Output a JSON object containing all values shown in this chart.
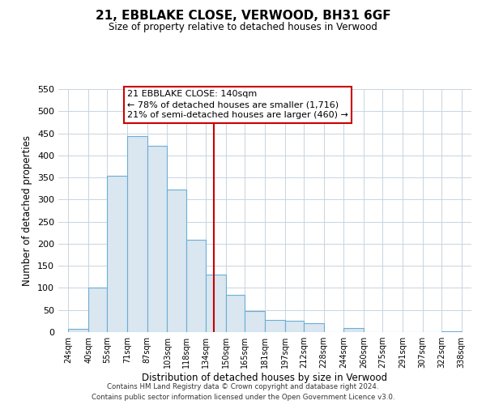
{
  "title": "21, EBBLAKE CLOSE, VERWOOD, BH31 6GF",
  "subtitle": "Size of property relative to detached houses in Verwood",
  "xlabel": "Distribution of detached houses by size in Verwood",
  "ylabel": "Number of detached properties",
  "bar_labels": [
    "24sqm",
    "40sqm",
    "55sqm",
    "71sqm",
    "87sqm",
    "103sqm",
    "118sqm",
    "134sqm",
    "150sqm",
    "165sqm",
    "181sqm",
    "197sqm",
    "212sqm",
    "228sqm",
    "244sqm",
    "260sqm",
    "275sqm",
    "291sqm",
    "307sqm",
    "322sqm",
    "338sqm"
  ],
  "bar_values": [
    7,
    101,
    354,
    444,
    422,
    323,
    209,
    130,
    85,
    47,
    28,
    25,
    20,
    0,
    9,
    0,
    0,
    0,
    0,
    2
  ],
  "bar_edges": [
    24,
    40,
    55,
    71,
    87,
    103,
    118,
    134,
    150,
    165,
    181,
    197,
    212,
    228,
    244,
    260,
    275,
    291,
    307,
    322,
    338
  ],
  "bar_color": "#dae6f0",
  "bar_edge_color": "#6baed6",
  "vline_x": 140,
  "vline_color": "#cc0000",
  "ylim": [
    0,
    550
  ],
  "yticks": [
    0,
    50,
    100,
    150,
    200,
    250,
    300,
    350,
    400,
    450,
    500,
    550
  ],
  "annotation_title": "21 EBBLAKE CLOSE: 140sqm",
  "annotation_line1": "← 78% of detached houses are smaller (1,716)",
  "annotation_line2": "21% of semi-detached houses are larger (460) →",
  "footer1": "Contains HM Land Registry data © Crown copyright and database right 2024.",
  "footer2": "Contains public sector information licensed under the Open Government Licence v3.0.",
  "background_color": "#ffffff",
  "grid_color": "#c8d4e0"
}
